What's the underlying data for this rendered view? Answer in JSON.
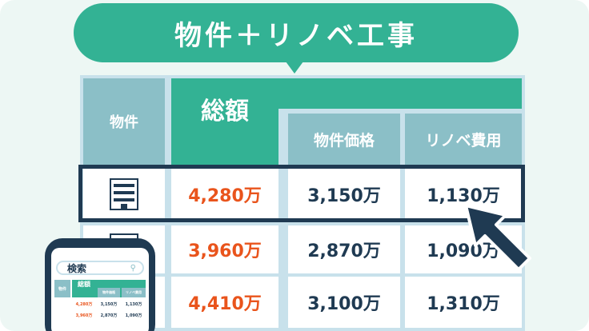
{
  "banner": "物件＋リノベ工事",
  "table": {
    "headers": {
      "property": "物件",
      "total": "総額",
      "price": "物件価格",
      "renovation": "リノベ費用"
    },
    "rows": [
      {
        "total": "4,280万",
        "price": "3,150万",
        "renovation": "1,130万"
      },
      {
        "total": "3,960万",
        "price": "2,870万",
        "renovation": "1,090万"
      },
      {
        "total": "4,410万",
        "price": "3,100万",
        "renovation": "1,310万"
      }
    ]
  },
  "phone": {
    "search_label": "検索"
  },
  "colors": {
    "green": "#33b294",
    "navy": "#1f3a52",
    "orange": "#e9541c",
    "header_gray": "#8bbfc7"
  }
}
